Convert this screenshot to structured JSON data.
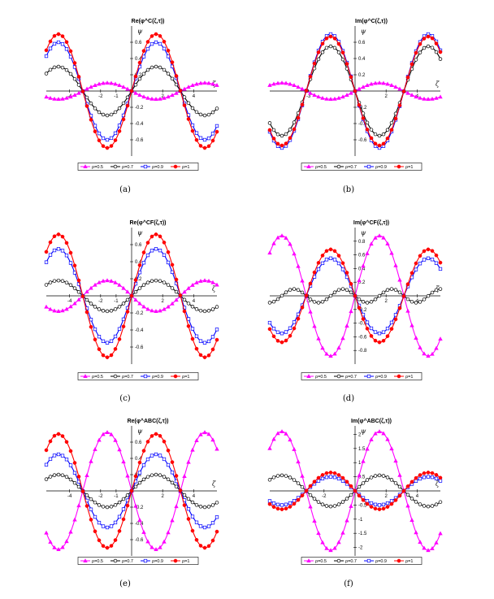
{
  "chart_data": [
    {
      "type": "line",
      "title": "Re(φ^C(ζ,τ))",
      "caption": "(a)",
      "xlabel": "ζ",
      "ylabel": "ψ",
      "xlim": [
        -5.5,
        5.5
      ],
      "ylim": [
        -0.8,
        0.8
      ],
      "xticks": [
        -4,
        -2,
        -1,
        2,
        4
      ],
      "xtick_labels": [
        "-4",
        "-2",
        "-1",
        "2",
        "4"
      ],
      "yticks": [
        -0.6,
        -0.4,
        -0.2,
        0.2,
        0.4,
        0.6
      ],
      "ytick_labels": [
        "-0.6",
        "-0.4",
        "-0.2",
        "0.2",
        "0.4",
        "0.6"
      ],
      "series": [
        {
          "name": "ρ=0.5",
          "color": "#ff00ff",
          "marker": "triangle",
          "kind": "sin",
          "amplitude": -0.1
        },
        {
          "name": "ρ=0.7",
          "color": "#000000",
          "marker": "circle-open",
          "kind": "sin",
          "amplitude": 0.3
        },
        {
          "name": "ρ=0.9",
          "color": "#0000ff",
          "marker": "square-open",
          "kind": "sin",
          "amplitude": 0.6
        },
        {
          "name": "ρ=1",
          "color": "#ff0000",
          "marker": "circle-filled",
          "kind": "sin",
          "amplitude": 0.7
        }
      ],
      "legend": "bottom"
    },
    {
      "type": "line",
      "title": "Im(φ^C(ζ,τ))",
      "caption": "(b)",
      "xlabel": "ζ",
      "ylabel": "ψ",
      "xlim": [
        -5.5,
        5.5
      ],
      "ylim": [
        -0.8,
        0.8
      ],
      "xticks": [
        -3,
        2,
        4
      ],
      "xtick_labels": [
        "-3",
        "2",
        "4"
      ],
      "yticks": [
        -0.6,
        -0.4,
        -0.2,
        0.2,
        0.4,
        0.6
      ],
      "ytick_labels": [
        "-0.6",
        "-0.4",
        "-0.2",
        "0.2",
        "0.4",
        "0.6"
      ],
      "series": [
        {
          "name": "ρ=0.5",
          "color": "#ff00ff",
          "marker": "triangle",
          "kind": "sin",
          "amplitude": 0.1
        },
        {
          "name": "ρ=0.7",
          "color": "#000000",
          "marker": "circle-open",
          "kind": "sin",
          "amplitude": -0.55
        },
        {
          "name": "ρ=0.9",
          "color": "#0000ff",
          "marker": "square-open",
          "kind": "sin",
          "amplitude": -0.7
        },
        {
          "name": "ρ=1",
          "color": "#ff0000",
          "marker": "circle-filled",
          "kind": "sin",
          "amplitude": -0.67
        }
      ],
      "legend": "bottom"
    },
    {
      "type": "line",
      "title": "Re(φ^CF(ζ,τ))",
      "caption": "(c)",
      "xlabel": "ζ",
      "ylabel": "ψ",
      "xlim": [
        -5.5,
        5.5
      ],
      "ylim": [
        -0.8,
        0.8
      ],
      "xticks": [
        -4,
        -2,
        -1,
        2,
        4
      ],
      "xtick_labels": [
        "-4",
        "-2",
        "-1",
        "2",
        "4"
      ],
      "yticks": [
        -0.6,
        -0.4,
        -0.2,
        0.2,
        0.4,
        0.6
      ],
      "ytick_labels": [
        "-0.6",
        "-0.4",
        "-0.2",
        "0.2",
        "0.4",
        "0.6"
      ],
      "series": [
        {
          "name": "ρ=0.5",
          "color": "#ff00ff",
          "marker": "triangle",
          "kind": "sin",
          "amplitude": -0.18
        },
        {
          "name": "ρ=0.7",
          "color": "#000000",
          "marker": "circle-open",
          "kind": "sin",
          "amplitude": 0.18
        },
        {
          "name": "ρ=0.9",
          "color": "#0000ff",
          "marker": "square-open",
          "kind": "sin",
          "amplitude": 0.55
        },
        {
          "name": "ρ=1",
          "color": "#ff0000",
          "marker": "circle-filled",
          "kind": "sin",
          "amplitude": 0.72
        }
      ],
      "legend": "bottom"
    },
    {
      "type": "line",
      "title": "Im(φ^CF(ζ,τ))",
      "caption": "(d)",
      "xlabel": "ζ",
      "ylabel": "ψ",
      "xlim": [
        -5.5,
        5.5
      ],
      "ylim": [
        -1.0,
        1.0
      ],
      "xticks": [
        -3,
        2,
        4
      ],
      "xtick_labels": [
        "-3",
        "2",
        "4"
      ],
      "yticks": [
        -0.8,
        -0.6,
        -0.4,
        -0.2,
        0.2,
        0.4,
        0.6,
        0.8
      ],
      "ytick_labels": [
        "-0.8",
        "-0.6",
        "-0.4",
        "-0.2",
        "0.2",
        "0.4",
        "0.6",
        "0.8"
      ],
      "series": [
        {
          "name": "ρ=0.5",
          "color": "#ff00ff",
          "marker": "triangle",
          "kind": "sin",
          "amplitude": 0.88
        },
        {
          "name": "ρ=0.7",
          "color": "#000000",
          "marker": "circle-open",
          "kind": "sin2",
          "amplitude": -0.1
        },
        {
          "name": "ρ=0.9",
          "color": "#0000ff",
          "marker": "square-open",
          "kind": "sin",
          "amplitude": -0.55
        },
        {
          "name": "ρ=1",
          "color": "#ff0000",
          "marker": "circle-filled",
          "kind": "sin",
          "amplitude": -0.68
        }
      ],
      "legend": "bottom"
    },
    {
      "type": "line",
      "title": "Re(φ^ABC(ζ,τ))",
      "caption": "(e)",
      "xlabel": "ζ",
      "ylabel": "ψ",
      "xlim": [
        -5.5,
        5.5
      ],
      "ylim": [
        -0.8,
        0.8
      ],
      "xticks": [
        -4,
        -2,
        -1,
        2,
        4
      ],
      "xtick_labels": [
        "-4",
        "-2",
        "-1",
        "2",
        "4"
      ],
      "yticks": [
        -0.6,
        -0.4,
        -0.2,
        0.2,
        0.4,
        0.6
      ],
      "ytick_labels": [
        "-0.6",
        "-0.4",
        "-0.2",
        "0.2",
        "0.4",
        "0.6"
      ],
      "series": [
        {
          "name": "ρ=0.5",
          "color": "#ff00ff",
          "marker": "triangle",
          "kind": "sin",
          "amplitude": -0.72
        },
        {
          "name": "ρ=0.7",
          "color": "#000000",
          "marker": "circle-open",
          "kind": "sin",
          "amplitude": 0.2
        },
        {
          "name": "ρ=0.9",
          "color": "#0000ff",
          "marker": "square-open",
          "kind": "sin",
          "amplitude": 0.45
        },
        {
          "name": "ρ=1",
          "color": "#ff0000",
          "marker": "circle-filled",
          "kind": "sin",
          "amplitude": 0.7
        }
      ],
      "legend": "bottom"
    },
    {
      "type": "line",
      "title": "Im(φ^ABC(ζ,τ))",
      "caption": "(f)",
      "xlabel": "ζ",
      "ylabel": "ψ",
      "xlim": [
        -5.5,
        5.5
      ],
      "ylim": [
        -2.3,
        2.3
      ],
      "xticks": [
        -2,
        2,
        4
      ],
      "xtick_labels": [
        "-2",
        "2",
        "4"
      ],
      "yticks": [
        -2,
        -1.5,
        -1,
        -0.5,
        0.5,
        1,
        1.5,
        2
      ],
      "ytick_labels": [
        "-2",
        "-1.5",
        "-1",
        "-0.5",
        "0.5",
        "1",
        "1.5",
        "2"
      ],
      "series": [
        {
          "name": "ρ=0.5",
          "color": "#ff00ff",
          "marker": "triangle",
          "kind": "sin",
          "amplitude": 2.1
        },
        {
          "name": "ρ=0.7",
          "color": "#000000",
          "marker": "circle-open",
          "kind": "sin",
          "amplitude": 0.55
        },
        {
          "name": "ρ=0.9",
          "color": "#0000ff",
          "marker": "square-open",
          "kind": "sin",
          "amplitude": -0.5
        },
        {
          "name": "ρ=1",
          "color": "#ff0000",
          "marker": "circle-filled",
          "kind": "sin",
          "amplitude": -0.65
        }
      ],
      "legend": "bottom"
    }
  ]
}
